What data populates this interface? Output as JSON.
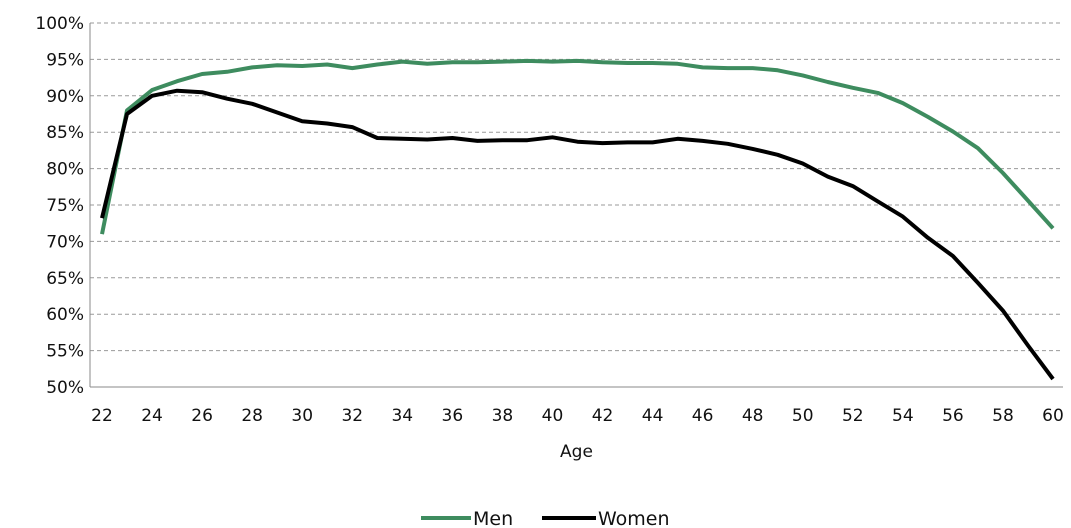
{
  "chart_data": {
    "type": "line",
    "title": "",
    "xlabel": "Age",
    "ylabel": "",
    "x": [
      22,
      23,
      24,
      25,
      26,
      27,
      28,
      29,
      30,
      31,
      32,
      33,
      34,
      35,
      36,
      37,
      38,
      39,
      40,
      41,
      42,
      43,
      44,
      45,
      46,
      47,
      48,
      49,
      50,
      51,
      52,
      53,
      54,
      55,
      56,
      57,
      58,
      59,
      60
    ],
    "xlim": [
      22,
      60
    ],
    "ylim": [
      50,
      100
    ],
    "x_ticks": [
      "22",
      "24",
      "26",
      "28",
      "30",
      "32",
      "34",
      "36",
      "38",
      "40",
      "42",
      "44",
      "46",
      "48",
      "50",
      "52",
      "54",
      "56",
      "58",
      "60"
    ],
    "y_ticks": [
      "50%",
      "55%",
      "60%",
      "65%",
      "70%",
      "75%",
      "80%",
      "85%",
      "90%",
      "95%",
      "100%"
    ],
    "grid": "horizontal dashed",
    "legend_position": "bottom",
    "series": [
      {
        "name": "Men",
        "color": "#3e8c5f",
        "values": [
          71.0,
          88.0,
          90.8,
          92.0,
          93.0,
          93.3,
          93.9,
          94.2,
          94.1,
          94.3,
          93.8,
          94.3,
          94.7,
          94.4,
          94.6,
          94.6,
          94.7,
          94.8,
          94.7,
          94.8,
          94.6,
          94.5,
          94.5,
          94.4,
          93.9,
          93.8,
          93.8,
          93.5,
          92.8,
          91.9,
          91.1,
          90.4,
          89.0,
          87.1,
          85.1,
          82.8,
          79.4,
          75.6,
          71.8
        ]
      },
      {
        "name": "Women",
        "color": "#000000",
        "values": [
          73.2,
          87.5,
          90.0,
          90.7,
          90.5,
          89.6,
          88.9,
          87.7,
          86.5,
          86.2,
          85.7,
          84.2,
          84.1,
          84.0,
          84.2,
          83.8,
          83.9,
          83.9,
          84.3,
          83.7,
          83.5,
          83.6,
          83.6,
          84.1,
          83.8,
          83.4,
          82.7,
          81.9,
          80.7,
          78.9,
          77.6,
          75.5,
          73.4,
          70.5,
          68.0,
          64.3,
          60.5,
          55.7,
          51.1
        ]
      }
    ]
  }
}
